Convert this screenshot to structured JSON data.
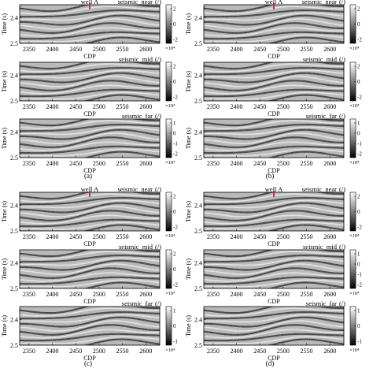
{
  "chart_data": [
    {
      "type": "heatmap",
      "group": "(a)",
      "well_label": "well A",
      "well_cdp": 2480,
      "panels": [
        {
          "title": "seismic_near",
          "unit": "(/)",
          "xlabel": "CDP",
          "ylabel": "Time (s)",
          "x_ticks": [
            2350,
            2400,
            2450,
            2500,
            2550,
            2600
          ],
          "y_ticks": [
            2.4,
            2.5
          ],
          "colorbar": {
            "ticks": [
              2,
              0,
              -2
            ],
            "exponent": "×10⁴"
          }
        },
        {
          "title": "seismic_mid",
          "unit": "(/)",
          "xlabel": "CDP",
          "ylabel": "Time (s)",
          "x_ticks": [
            2350,
            2400,
            2450,
            2500,
            2550,
            2600
          ],
          "y_ticks": [
            2.4,
            2.5
          ],
          "colorbar": {
            "ticks": [
              2,
              0,
              -2
            ],
            "exponent": "×10⁴"
          }
        },
        {
          "title": "seismic_far",
          "unit": "(/)",
          "xlabel": "CDP",
          "ylabel": "Time (s)",
          "x_ticks": [
            2350,
            2400,
            2450,
            2500,
            2550,
            2600
          ],
          "y_ticks": [
            2.4,
            2.5
          ],
          "colorbar": {
            "ticks": [
              1,
              0,
              -1,
              -2
            ],
            "exponent": "×10⁴"
          }
        }
      ],
      "xlim": [
        2330,
        2630
      ],
      "ylim": [
        2.35,
        2.5
      ]
    },
    {
      "type": "heatmap",
      "group": "(b)",
      "well_label": "well A",
      "well_cdp": 2480,
      "panels": [
        {
          "title": "seismic_near",
          "unit": "(/)",
          "xlabel": "CDP",
          "ylabel": "Time (s)",
          "x_ticks": [
            2350,
            2400,
            2450,
            2500,
            2550,
            2600
          ],
          "y_ticks": [
            2.4,
            2.5
          ],
          "colorbar": {
            "ticks": [
              2,
              0,
              -2
            ],
            "exponent": "×10⁴"
          }
        },
        {
          "title": "seismic_mid",
          "unit": "(/)",
          "xlabel": "CDP",
          "ylabel": "Time (s)",
          "x_ticks": [
            2350,
            2400,
            2450,
            2500,
            2550,
            2600
          ],
          "y_ticks": [
            2.4,
            2.5
          ],
          "colorbar": {
            "ticks": [
              2,
              0,
              -2
            ],
            "exponent": "×10⁴"
          }
        },
        {
          "title": "seismic_far",
          "unit": "(/)",
          "xlabel": "CDP",
          "ylabel": "Time (s)",
          "x_ticks": [
            2350,
            2400,
            2450,
            2500,
            2550,
            2600
          ],
          "y_ticks": [
            2.4,
            2.5
          ],
          "colorbar": {
            "ticks": [
              1,
              0,
              -1,
              -2
            ],
            "exponent": "×10⁴"
          }
        }
      ],
      "xlim": [
        2330,
        2630
      ],
      "ylim": [
        2.35,
        2.5
      ]
    },
    {
      "type": "heatmap",
      "group": "(c)",
      "well_label": "well A",
      "well_cdp": 2480,
      "panels": [
        {
          "title": "seismic_near",
          "unit": "(/)",
          "xlabel": "CDP",
          "ylabel": "Time (s)",
          "x_ticks": [
            2350,
            2400,
            2450,
            2500,
            2550,
            2600
          ],
          "y_ticks": [
            2.4,
            2.5
          ],
          "colorbar": {
            "ticks": [
              2,
              0,
              -2
            ],
            "exponent": "×10⁴"
          }
        },
        {
          "title": "seismic_mid",
          "unit": "(/)",
          "xlabel": "CDP",
          "ylabel": "Time (s)",
          "x_ticks": [
            2350,
            2400,
            2450,
            2500,
            2550,
            2600
          ],
          "y_ticks": [
            2.4,
            2.5
          ],
          "colorbar": {
            "ticks": [
              2,
              0,
              -2
            ],
            "exponent": "×10⁴"
          }
        },
        {
          "title": "seismic_far",
          "unit": "(/)",
          "xlabel": "CDP",
          "ylabel": "Time (s)",
          "x_ticks": [
            2350,
            2400,
            2450,
            2500,
            2550,
            2600
          ],
          "y_ticks": [
            2.4,
            2.5
          ],
          "colorbar": {
            "ticks": [
              1,
              0,
              -1
            ],
            "exponent": "×10⁴"
          }
        }
      ],
      "xlim": [
        2330,
        2630
      ],
      "ylim": [
        2.35,
        2.5
      ]
    },
    {
      "type": "heatmap",
      "group": "(d)",
      "well_label": "well A",
      "well_cdp": 2480,
      "panels": [
        {
          "title": "seismic_near",
          "unit": "(/)",
          "xlabel": "CDP",
          "ylabel": "Time (s)",
          "x_ticks": [
            2350,
            2400,
            2450,
            2500,
            2550,
            2600
          ],
          "y_ticks": [
            2.4,
            2.5
          ],
          "colorbar": {
            "ticks": [
              2,
              0,
              -2
            ],
            "exponent": "×10⁴"
          }
        },
        {
          "title": "seismic_mid",
          "unit": "(/)",
          "xlabel": "CDP",
          "ylabel": "Time (s)",
          "x_ticks": [
            2350,
            2400,
            2450,
            2500,
            2550,
            2600
          ],
          "y_ticks": [
            2.4,
            2.5
          ],
          "colorbar": {
            "ticks": [
              1,
              0,
              -1,
              -2
            ],
            "exponent": "×10⁴"
          }
        },
        {
          "title": "seismic_far",
          "unit": "(/)",
          "xlabel": "CDP",
          "ylabel": "Time (s)",
          "x_ticks": [
            2350,
            2400,
            2450,
            2500,
            2550,
            2600
          ],
          "y_ticks": [
            2.4,
            2.5
          ],
          "colorbar": {
            "ticks": [
              1,
              0,
              -1
            ],
            "exponent": "×10⁴"
          }
        }
      ],
      "xlim": [
        2330,
        2630
      ],
      "ylim": [
        2.35,
        2.5
      ]
    }
  ],
  "colors": {
    "well_marker": "#c8102e",
    "seismic_light": "#f2f2f2",
    "seismic_dark": "#1a1a1a",
    "seismic_mid": "#9a9a9a"
  }
}
